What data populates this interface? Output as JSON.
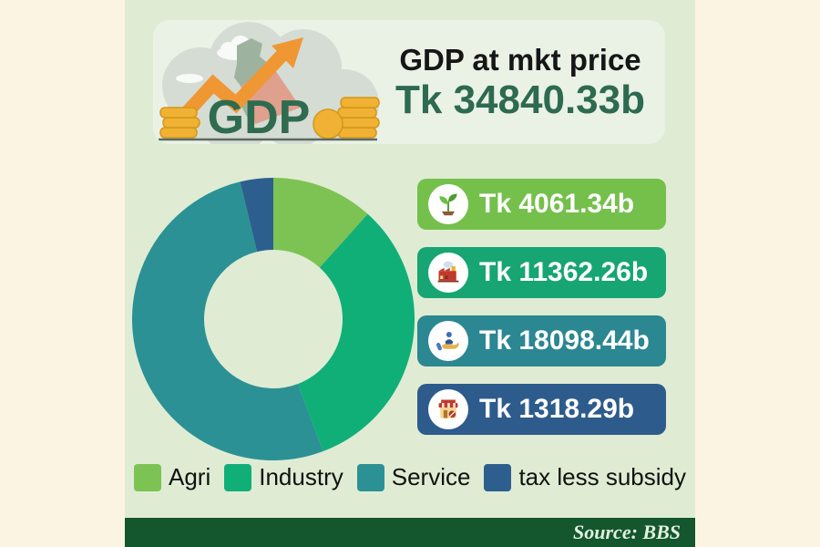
{
  "header": {
    "title": "GDP at mkt price",
    "amount": "Tk 34840.33b",
    "logo_text": "GDP"
  },
  "chart_data": {
    "type": "pie",
    "donut": true,
    "title": "GDP at mkt price",
    "total_label": "Tk 34840.33b",
    "total": 34840.33,
    "unit": "Tk billion",
    "categories": [
      "Agri",
      "Industry",
      "Service",
      "tax less subsidy"
    ],
    "values": [
      4061.34,
      11362.26,
      18098.44,
      1318.29
    ],
    "value_labels": [
      "Tk 4061.34b",
      "Tk 11362.26b",
      "Tk 18098.44b",
      "Tk 1318.29b"
    ],
    "colors": [
      "#7cc353",
      "#10af77",
      "#2b9194",
      "#2d5f8e"
    ],
    "start_angle_deg": 0,
    "direction": "clockwise",
    "legend_position": "bottom"
  },
  "pills": [
    {
      "label": "Tk 4061.34b",
      "icon": "seedling-icon",
      "bg": "#74c04b"
    },
    {
      "label": "Tk 11362.26b",
      "icon": "factory-icon",
      "bg": "#16a573"
    },
    {
      "label": "Tk 18098.44b",
      "icon": "hand-service-icon",
      "bg": "#2b8791"
    },
    {
      "label": "Tk 1318.29b",
      "icon": "shop-icon",
      "bg": "#2d5b8c"
    }
  ],
  "legend": [
    {
      "label": "Agri",
      "color": "#7cc353"
    },
    {
      "label": "Industry",
      "color": "#10af77"
    },
    {
      "label": "Service",
      "color": "#2b9194"
    },
    {
      "label": "tax less subsidy",
      "color": "#2d5f8e"
    }
  ],
  "footer": {
    "source": "Source: BBS"
  },
  "theme": {
    "page_bg": "#fcf4e3",
    "column_bg": "#dfecd3",
    "card_bg": "#eaf2e6",
    "footer_bg": "#14562e",
    "amount_color": "#2d6a4f"
  }
}
